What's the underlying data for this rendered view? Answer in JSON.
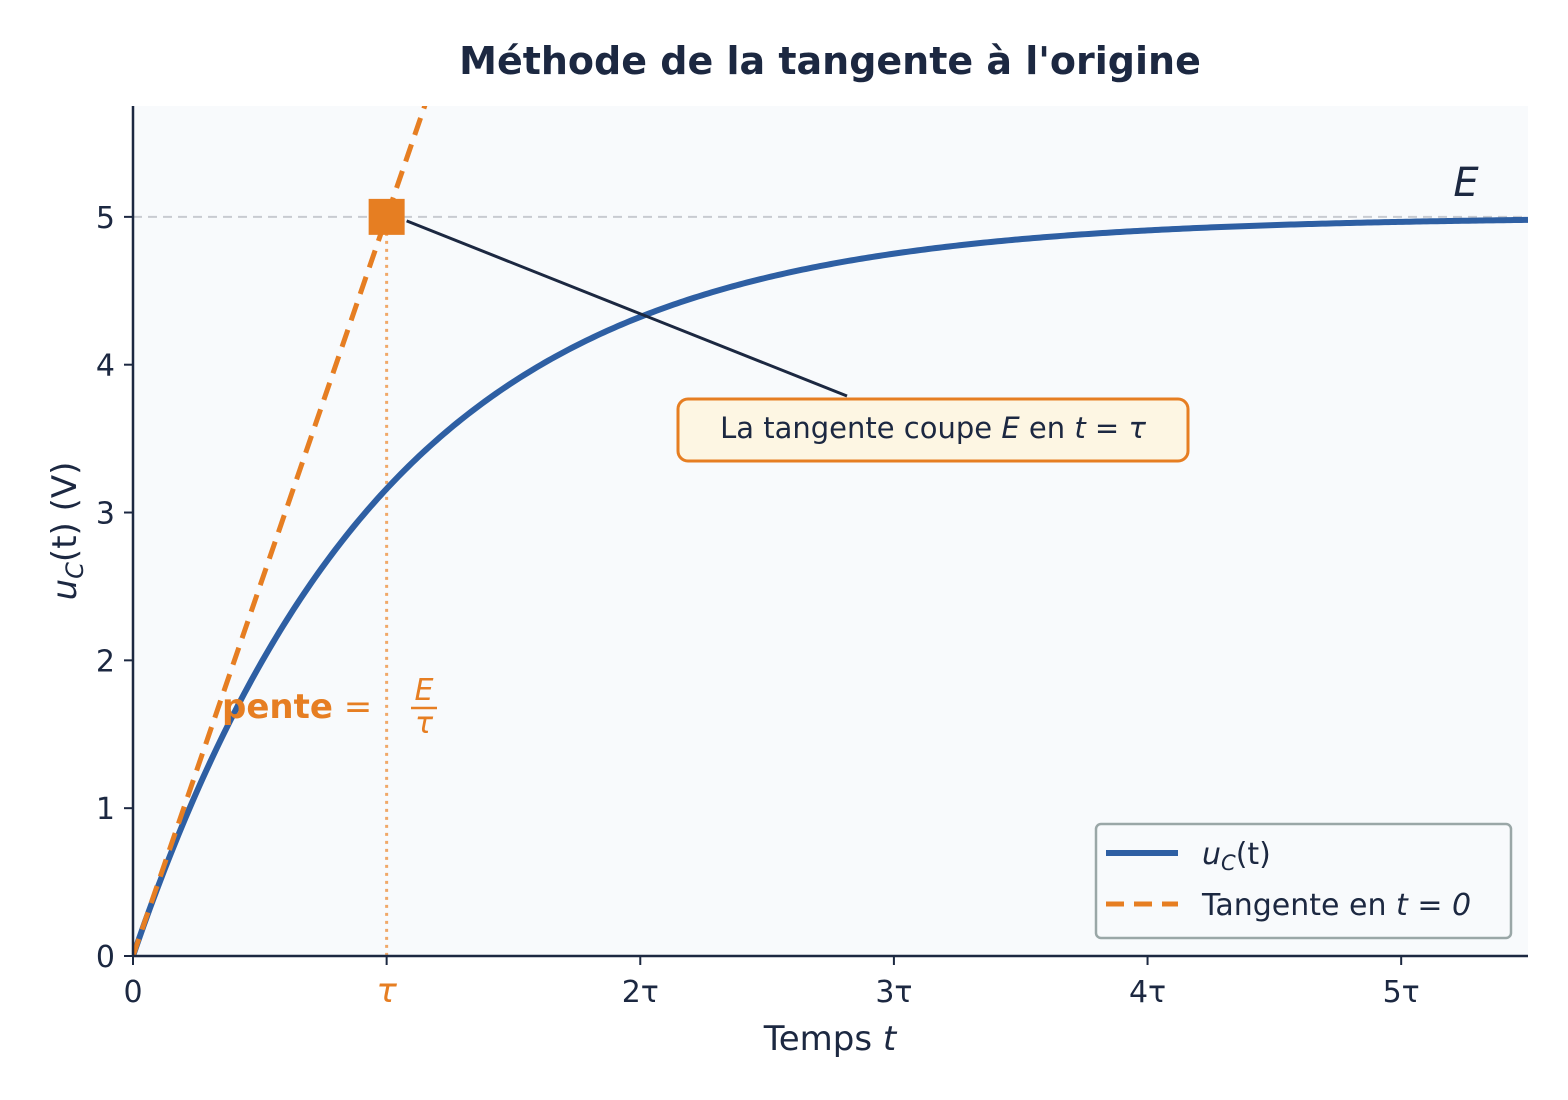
{
  "chart_data": {
    "type": "line",
    "title": "Méthode de la tangente à l'origine",
    "xlabel": {
      "text": "Temps ",
      "var": "t"
    },
    "ylabel": {
      "u": "u",
      "sub": "C",
      "rest": "(t) (V)"
    },
    "xlim": [
      0,
      5.5
    ],
    "ylim": [
      0,
      5.75
    ],
    "E": 5,
    "x_ticks": [
      {
        "value": 0,
        "label": "0"
      },
      {
        "value": 1,
        "label": "τ"
      },
      {
        "value": 2,
        "label": "2τ"
      },
      {
        "value": 3,
        "label": "3τ"
      },
      {
        "value": 4,
        "label": "4τ"
      },
      {
        "value": 5,
        "label": "5τ"
      }
    ],
    "y_ticks": [
      {
        "value": 0,
        "label": "0"
      },
      {
        "value": 1,
        "label": "1"
      },
      {
        "value": 2,
        "label": "2"
      },
      {
        "value": 3,
        "label": "3"
      },
      {
        "value": 4,
        "label": "4"
      },
      {
        "value": 5,
        "label": "5"
      }
    ],
    "series": [
      {
        "name": "u_C(t)",
        "kind": "curve",
        "formula": "E(1 - e^(-t/τ))",
        "color": "#2e5fa3"
      },
      {
        "name": "Tangente en t = 0",
        "kind": "tangent",
        "formula": "E·t/τ",
        "color": "#e67e22"
      }
    ],
    "marker_point": {
      "x": 1,
      "y": 5
    },
    "E_label": "E",
    "annotation": {
      "pre": "La tangente coupe ",
      "E": "E",
      "mid": " en ",
      "eq": "t = τ"
    },
    "slope_label": {
      "text": "pente",
      "eq": " = ",
      "num": "E",
      "den": "τ"
    },
    "legend": {
      "position": "bottom-right",
      "curve": {
        "u": "u",
        "sub": "C",
        "rest": "(t)"
      },
      "tangent": {
        "text": "Tangente en ",
        "eq": "t = 0"
      }
    },
    "grid": false,
    "colors": {
      "curve": "#2e5fa3",
      "tangent": "#e67e22",
      "text": "#1c2841",
      "plot_bg": "#f8fafc",
      "annotation_bg": "#fdf6e3"
    }
  }
}
